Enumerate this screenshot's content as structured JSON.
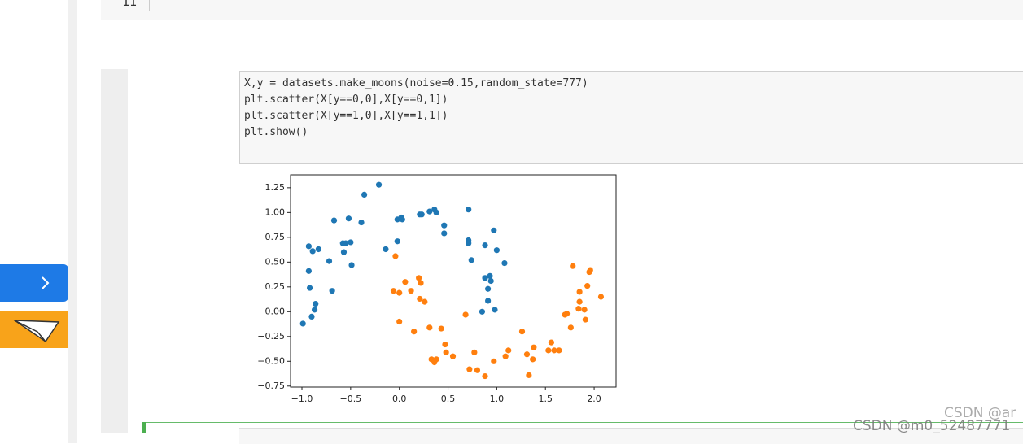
{
  "top_cell": {
    "prompt": "11"
  },
  "code_cell": {
    "lines": [
      "X,y = datasets.make_moons(noise=0.15,random_state=777)",
      "plt.scatter(X[y==0,0],X[y==0,1])",
      "plt.scatter(X[y==1,0],X[y==1,1])",
      "plt.show()"
    ]
  },
  "watermark": {
    "text": "CSDN @m0_52487771",
    "partial": "CSDN @ar"
  },
  "chart_data": {
    "type": "scatter",
    "xlim": [
      -1.117,
      2.225
    ],
    "ylim": [
      -0.76,
      1.38
    ],
    "xticks": [
      {
        "value": -1,
        "label": "−1.0"
      },
      {
        "value": -0.5,
        "label": "−0.5"
      },
      {
        "value": 0,
        "label": "0.0"
      },
      {
        "value": 0.5,
        "label": "0.5"
      },
      {
        "value": 1,
        "label": "1.0"
      },
      {
        "value": 1.5,
        "label": "1.5"
      },
      {
        "value": 2,
        "label": "2.0"
      }
    ],
    "yticks": [
      1.25,
      {
        "value": 1,
        "label": "1.00"
      },
      0.75,
      {
        "value": 0.5,
        "label": "0.50"
      },
      0.25,
      {
        "value": 0,
        "label": "0.00"
      },
      {
        "value": -0.25,
        "label": "−0.25"
      },
      {
        "value": -0.5,
        "label": "−0.50"
      },
      {
        "value": -0.75,
        "label": "−0.75"
      }
    ],
    "series": [
      {
        "color": "#1f77b4",
        "x": [
          -0.99,
          -0.93,
          -0.93,
          -0.92,
          -0.9,
          -0.89,
          -0.87,
          -0.86,
          -0.83,
          -0.72,
          -0.69,
          -0.67,
          -0.58,
          -0.57,
          -0.55,
          -0.52,
          -0.5,
          -0.49,
          -0.39,
          -0.36,
          -0.21,
          -0.14,
          -0.02,
          -0.02,
          0.02,
          0.03,
          0.21,
          0.23,
          0.31,
          0.36,
          0.38,
          0.46,
          0.46,
          0.71,
          0.71,
          0.71,
          0.74,
          0.85,
          0.88,
          0.88,
          0.91,
          0.91,
          0.93,
          0.94,
          0.97,
          0.98,
          1.0,
          1.08
        ],
        "values": [
          -0.12,
          0.41,
          0.66,
          0.24,
          -0.05,
          0.61,
          0.02,
          0.08,
          0.63,
          0.51,
          0.21,
          0.92,
          0.69,
          0.6,
          0.69,
          0.94,
          0.7,
          0.47,
          0.9,
          1.18,
          1.28,
          0.63,
          0.71,
          0.93,
          0.95,
          0.93,
          0.98,
          0.98,
          1.01,
          1.03,
          1.0,
          0.87,
          0.79,
          1.03,
          0.72,
          0.69,
          0.52,
          0.0,
          0.34,
          0.67,
          0.23,
          0.11,
          0.36,
          0.31,
          0.82,
          0.02,
          0.62,
          0.49
        ]
      },
      {
        "color": "#ff7f0e",
        "x": [
          -0.06,
          -0.04,
          0.0,
          0.0,
          0.06,
          0.12,
          0.15,
          0.2,
          0.21,
          0.22,
          0.26,
          0.31,
          0.33,
          0.36,
          0.38,
          0.43,
          0.47,
          0.48,
          0.55,
          0.68,
          0.72,
          0.77,
          0.8,
          0.88,
          0.97,
          1.09,
          1.12,
          1.26,
          1.31,
          1.33,
          1.37,
          1.38,
          1.53,
          1.56,
          1.59,
          1.64,
          1.7,
          1.72,
          1.76,
          1.78,
          1.84,
          1.85,
          1.85,
          1.9,
          1.91,
          1.93,
          1.95,
          1.96,
          2.07
        ],
        "values": [
          0.21,
          0.56,
          0.19,
          -0.1,
          0.3,
          0.21,
          -0.2,
          0.34,
          0.13,
          0.29,
          0.1,
          -0.16,
          -0.48,
          -0.51,
          -0.48,
          -0.17,
          -0.33,
          -0.41,
          -0.45,
          -0.03,
          -0.58,
          -0.41,
          -0.59,
          -0.65,
          -0.5,
          -0.45,
          -0.39,
          -0.2,
          -0.43,
          -0.64,
          -0.48,
          -0.36,
          -0.39,
          -0.31,
          -0.39,
          -0.39,
          -0.03,
          -0.02,
          -0.16,
          0.46,
          0.03,
          0.1,
          0.2,
          0.02,
          -0.08,
          0.26,
          0.4,
          0.42,
          0.15
        ]
      }
    ]
  }
}
